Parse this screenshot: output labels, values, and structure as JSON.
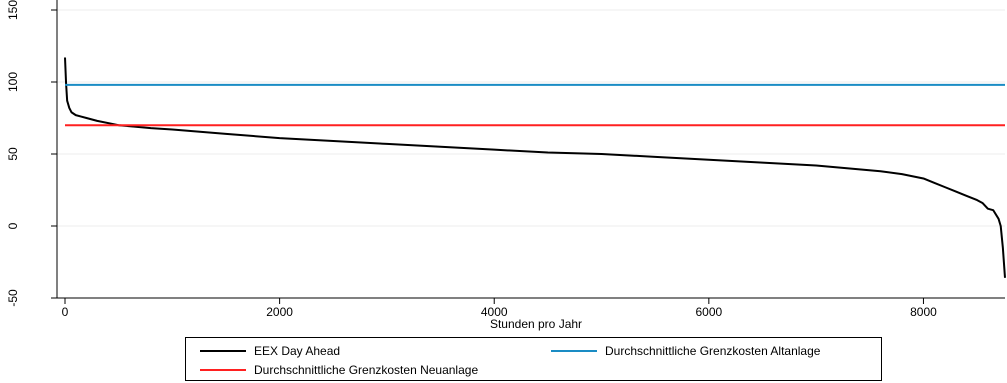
{
  "chart_data": {
    "type": "line",
    "title": "",
    "xlabel": "Stunden pro Jahr",
    "ylabel": "",
    "xlim": [
      0,
      8760
    ],
    "ylim": [
      -50,
      150
    ],
    "xticks": [
      0,
      2000,
      4000,
      6000,
      8000
    ],
    "yticks": [
      -50,
      0,
      50,
      100,
      150
    ],
    "x_tick_labels": [
      "0",
      "2000",
      "4000",
      "6000",
      "8000"
    ],
    "y_tick_labels": [
      "-50",
      "0",
      "50",
      "100",
      "150"
    ],
    "grid": "horizontal",
    "legend_position": "bottom",
    "series": [
      {
        "name": "EEX Day Ahead",
        "color": "#000000",
        "x": [
          0,
          10,
          20,
          40,
          60,
          100,
          150,
          200,
          300,
          500,
          800,
          1000,
          1500,
          2000,
          2500,
          3000,
          3500,
          4000,
          4500,
          5000,
          5500,
          6000,
          6500,
          7000,
          7300,
          7600,
          7800,
          8000,
          8100,
          8200,
          8300,
          8400,
          8500,
          8550,
          8600,
          8650,
          8700,
          8720,
          8740,
          8760
        ],
        "y": [
          117,
          99,
          87,
          82,
          79,
          77,
          76,
          75,
          73,
          70,
          68,
          67,
          64,
          61,
          59,
          57,
          55,
          53,
          51,
          50,
          48,
          46,
          44,
          42,
          40,
          38,
          36,
          33,
          30,
          27,
          24,
          21,
          18,
          16,
          12,
          11,
          5,
          0,
          -15,
          -36
        ]
      },
      {
        "name": "Durchschnittliche Grenzkosten Altanlage",
        "color": "#1a8cc4",
        "x": [
          0,
          8760
        ],
        "y": [
          98,
          98
        ]
      },
      {
        "name": "Durchschnittliche Grenzkosten Neuanlage",
        "color": "#ff2020",
        "x": [
          0,
          8760
        ],
        "y": [
          70,
          70
        ]
      }
    ]
  },
  "legend": {
    "items": [
      {
        "label": "EEX Day Ahead",
        "color": "#000000"
      },
      {
        "label": "Durchschnittliche Grenzkosten Altanlage",
        "color": "#1a8cc4"
      },
      {
        "label": "Durchschnittliche Grenzkosten Neuanlage",
        "color": "#ff2020"
      }
    ]
  }
}
